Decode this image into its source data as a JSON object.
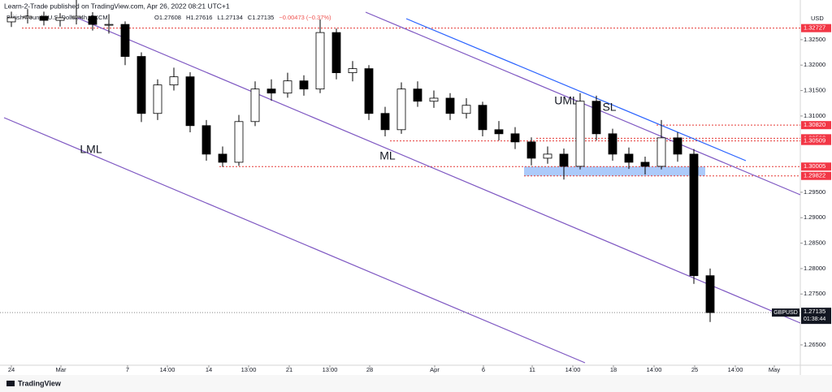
{
  "header": {
    "published": "Learn-2-Trade published on TradingView.com, Apr 26, 2022 08:21 UTC+1",
    "symbol": "British Pound / U.S. Dollar, 4h, FXCM",
    "ohlc": [
      "O1.27608",
      "H1.27616",
      "L1.27134",
      "C1.27135",
      "−0.00473 (−0.37%)"
    ]
  },
  "chart_data": {
    "type": "candlestick",
    "currency": "USD",
    "x": [
      0,
      1,
      2,
      3,
      4,
      5,
      6,
      7,
      8,
      9,
      10,
      11,
      12,
      13,
      14,
      15,
      16,
      17,
      18,
      19,
      20,
      21,
      22,
      23,
      24,
      25,
      26,
      27,
      28,
      29,
      30,
      31,
      32,
      33,
      34,
      35,
      36,
      37,
      38,
      39,
      40,
      41,
      42,
      43
    ],
    "open": [
      1.3285,
      1.3293,
      1.3296,
      1.3288,
      1.3293,
      1.3296,
      1.328,
      1.328,
      1.3217,
      1.3105,
      1.3161,
      1.3177,
      1.3081,
      1.3025,
      1.3009,
      1.3089,
      1.3153,
      1.3145,
      1.3169,
      1.3153,
      1.3264,
      1.3185,
      1.3193,
      1.3105,
      1.3073,
      1.3153,
      1.3129,
      1.3135,
      1.3105,
      1.3121,
      1.3073,
      1.3065,
      1.3049,
      1.3017,
      1.3025,
      1.3001,
      1.3129,
      1.3065,
      1.3025,
      1.3009,
      1.3001,
      1.3057,
      1.3025,
      1.2786
    ],
    "high": [
      1.3305,
      1.331,
      1.3305,
      1.3302,
      1.333,
      1.3304,
      1.33,
      1.3286,
      1.3225,
      1.3172,
      1.3195,
      1.3186,
      1.3092,
      1.304,
      1.3102,
      1.3168,
      1.3172,
      1.3185,
      1.318,
      1.329,
      1.3272,
      1.3208,
      1.32,
      1.3118,
      1.3166,
      1.3168,
      1.315,
      1.3145,
      1.3135,
      1.3128,
      1.309,
      1.3078,
      1.3058,
      1.304,
      1.3036,
      1.3145,
      1.314,
      1.3075,
      1.3038,
      1.302,
      1.3092,
      1.3068,
      1.3035,
      1.28
    ],
    "low": [
      1.3275,
      1.3282,
      1.3278,
      1.3276,
      1.328,
      1.3268,
      1.3262,
      1.32,
      1.3088,
      1.3092,
      1.315,
      1.3068,
      1.3012,
      1.3,
      1.3002,
      1.308,
      1.313,
      1.3136,
      1.314,
      1.3145,
      1.3172,
      1.3168,
      1.3092,
      1.306,
      1.3065,
      1.3118,
      1.3116,
      1.3092,
      1.3095,
      1.306,
      1.3052,
      1.3035,
      1.3003,
      1.3006,
      1.2975,
      1.2995,
      1.3052,
      1.3012,
      1.2996,
      1.2985,
      1.2995,
      1.301,
      1.277,
      1.2695
    ],
    "close": [
      1.3293,
      1.3296,
      1.3288,
      1.3293,
      1.3296,
      1.328,
      1.328,
      1.3217,
      1.3105,
      1.3161,
      1.3177,
      1.3081,
      1.3025,
      1.3009,
      1.3089,
      1.3153,
      1.3145,
      1.3169,
      1.3153,
      1.3264,
      1.3185,
      1.3193,
      1.3105,
      1.3073,
      1.3153,
      1.3129,
      1.3135,
      1.3105,
      1.3121,
      1.3073,
      1.3065,
      1.3049,
      1.3017,
      1.3025,
      1.3001,
      1.3129,
      1.3065,
      1.3025,
      1.3009,
      1.3001,
      1.3057,
      1.3025,
      1.2786,
      1.27135
    ],
    "up_color": "#ffffff",
    "down_color": "#000000",
    "xlim": [
      -0.7,
      48.55
    ],
    "ylim": [
      1.261,
      1.3328
    ],
    "xticks": [
      {
        "value": 0,
        "label": "24"
      },
      {
        "value": 3.05,
        "label": "Mar"
      },
      {
        "value": 7.15,
        "label": "7"
      },
      {
        "value": 9.6,
        "label": "14:00"
      },
      {
        "value": 12.15,
        "label": "14"
      },
      {
        "value": 14.6,
        "label": "13:00"
      },
      {
        "value": 17.1,
        "label": "21"
      },
      {
        "value": 19.6,
        "label": "13:00"
      },
      {
        "value": 22.05,
        "label": "28"
      },
      {
        "value": 26.05,
        "label": "Apr"
      },
      {
        "value": 29.05,
        "label": "6"
      },
      {
        "value": 32.05,
        "label": "11"
      },
      {
        "value": 34.55,
        "label": "14:00"
      },
      {
        "value": 37.05,
        "label": "18"
      },
      {
        "value": 39.55,
        "label": "14:00"
      },
      {
        "value": 42.05,
        "label": "25"
      },
      {
        "value": 44.55,
        "label": "14:00"
      },
      {
        "value": 46.95,
        "label": "May"
      }
    ],
    "yticks": [
      {
        "value": 1.325,
        "label": "1.32500"
      },
      {
        "value": 1.32,
        "label": "1.32000"
      },
      {
        "value": 1.315,
        "label": "1.31500"
      },
      {
        "value": 1.31,
        "label": "1.31000"
      },
      {
        "value": 1.295,
        "label": "1.29500"
      },
      {
        "value": 1.29,
        "label": "1.29000"
      },
      {
        "value": 1.285,
        "label": "1.28500"
      },
      {
        "value": 1.28,
        "label": "1.28000"
      },
      {
        "value": 1.275,
        "label": "1.27500"
      },
      {
        "value": 1.265,
        "label": "1.26500"
      }
    ],
    "levels": [
      1.32727,
      {
        "value": 1.3082,
        "label": "1.30820"
      },
      1.30562,
      1.30509,
      1.30005,
      1.29822
    ],
    "last_price": 1.27135,
    "last_symbol": "GBPUSD",
    "countdown": "01:38:44",
    "annotations": [
      "LML",
      "ML",
      "UML",
      "SL"
    ]
  },
  "footer": {
    "brand": "TradingView"
  }
}
